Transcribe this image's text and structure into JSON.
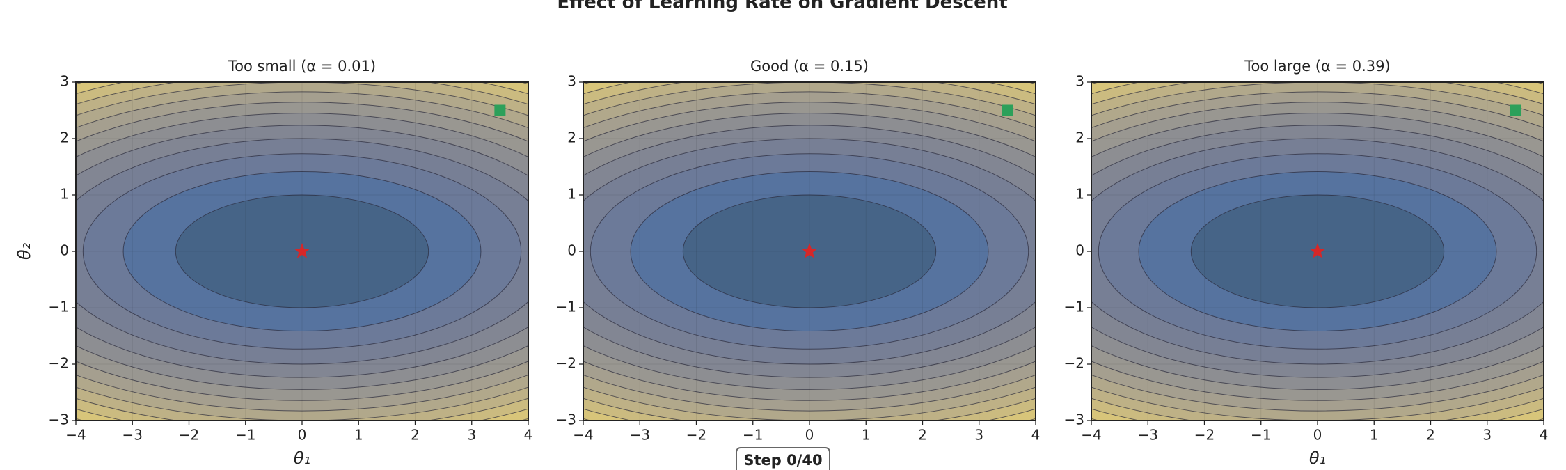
{
  "figure": {
    "title": "Effect of Learning Rate on Gradient Descent",
    "step_label": "Step 0/40"
  },
  "chart_data": [
    {
      "type": "contour",
      "title": "Too small (α = 0.01)",
      "xlabel": "θ₁",
      "ylabel": "θ₂",
      "xlim": [
        -4,
        4
      ],
      "ylim": [
        -3,
        3
      ],
      "xticks": [
        {
          "value": -4,
          "label": "−4"
        },
        {
          "value": -3,
          "label": "−3"
        },
        {
          "value": -2,
          "label": "−2"
        },
        {
          "value": -1,
          "label": "−1"
        },
        0,
        1,
        2,
        3,
        4
      ],
      "yticks": [
        {
          "value": -3,
          "label": "−3"
        },
        {
          "value": -2,
          "label": "−2"
        },
        {
          "value": -1,
          "label": "−1"
        },
        0,
        1,
        2,
        3
      ],
      "levels": [
        5,
        10,
        15,
        20,
        25,
        30,
        35,
        40,
        45,
        50,
        55,
        60
      ],
      "colors": [
        "#466487",
        "#56739f",
        "#6c7a99",
        "#777f95",
        "#828693",
        "#8d8e92",
        "#999791",
        "#a59f8f",
        "#b1a88b",
        "#beb186",
        "#cbbb80",
        "#d8c57a",
        "#e4cf74"
      ],
      "grid": true,
      "start": {
        "x": 3.5,
        "y": 2.5
      },
      "start_color": "#2ca05a",
      "minimum": {
        "x": 0,
        "y": 0
      },
      "minimum_color": "#d62728"
    },
    {
      "type": "contour",
      "title": "Good (α = 0.15)",
      "xlabel": "θ₁",
      "xlim": [
        -4,
        4
      ],
      "ylim": [
        -3,
        3
      ],
      "xticks": [
        {
          "value": -4,
          "label": "−4"
        },
        {
          "value": -3,
          "label": "−3"
        },
        {
          "value": -2,
          "label": "−2"
        },
        {
          "value": -1,
          "label": "−1"
        },
        0,
        1,
        2,
        3,
        4
      ],
      "yticks": [
        {
          "value": -3,
          "label": "−3"
        },
        {
          "value": -2,
          "label": "−2"
        },
        {
          "value": -1,
          "label": "−1"
        },
        0,
        1,
        2,
        3
      ],
      "levels": [
        5,
        10,
        15,
        20,
        25,
        30,
        35,
        40,
        45,
        50,
        55,
        60
      ],
      "colors": [
        "#466487",
        "#56739f",
        "#6c7a99",
        "#777f95",
        "#828693",
        "#8d8e92",
        "#999791",
        "#a59f8f",
        "#b1a88b",
        "#beb186",
        "#cbbb80",
        "#d8c57a",
        "#e4cf74"
      ],
      "grid": true,
      "start": {
        "x": 3.5,
        "y": 2.5
      },
      "start_color": "#2ca05a",
      "minimum": {
        "x": 0,
        "y": 0
      },
      "minimum_color": "#d62728"
    },
    {
      "type": "contour",
      "title": "Too large (α = 0.39)",
      "xlabel": "θ₁",
      "xlim": [
        -4,
        4
      ],
      "ylim": [
        -3,
        3
      ],
      "xticks": [
        {
          "value": -4,
          "label": "−4"
        },
        {
          "value": -3,
          "label": "−3"
        },
        {
          "value": -2,
          "label": "−2"
        },
        {
          "value": -1,
          "label": "−1"
        },
        0,
        1,
        2,
        3,
        4
      ],
      "yticks": [
        {
          "value": -3,
          "label": "−3"
        },
        {
          "value": -2,
          "label": "−2"
        },
        {
          "value": -1,
          "label": "−1"
        },
        0,
        1,
        2,
        3
      ],
      "levels": [
        5,
        10,
        15,
        20,
        25,
        30,
        35,
        40,
        45,
        50,
        55,
        60
      ],
      "colors": [
        "#466487",
        "#56739f",
        "#6c7a99",
        "#777f95",
        "#828693",
        "#8d8e92",
        "#999791",
        "#a59f8f",
        "#b1a88b",
        "#beb186",
        "#cbbb80",
        "#d8c57a",
        "#e4cf74"
      ],
      "grid": true,
      "start": {
        "x": 3.5,
        "y": 2.5
      },
      "start_color": "#2ca05a",
      "minimum": {
        "x": 0,
        "y": 0
      },
      "minimum_color": "#d62728"
    }
  ]
}
